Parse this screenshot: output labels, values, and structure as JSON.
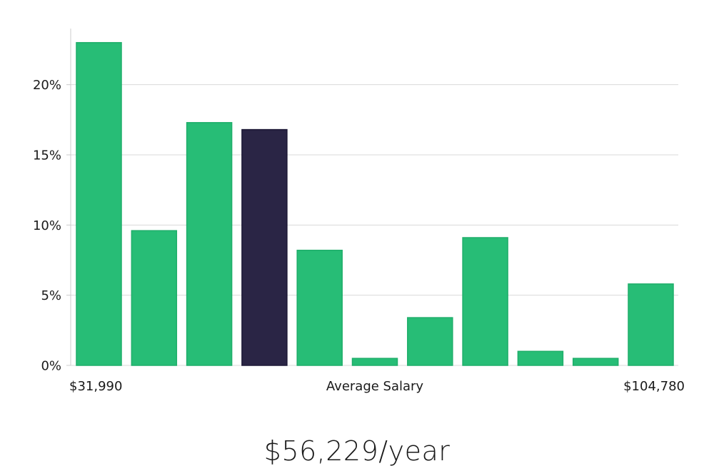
{
  "chart_data": {
    "type": "bar",
    "categories": [
      "1",
      "2",
      "3",
      "4",
      "5",
      "6",
      "7",
      "8",
      "9",
      "10",
      "11"
    ],
    "values": [
      23.0,
      9.6,
      17.3,
      16.8,
      8.2,
      0.5,
      3.4,
      9.1,
      1.0,
      0.5,
      5.8
    ],
    "highlight_index": 3,
    "ylim": [
      0,
      24
    ],
    "yticks": [
      0,
      5,
      10,
      15,
      20
    ],
    "ytick_labels": [
      "0%",
      "5%",
      "10%",
      "15%",
      "20%"
    ],
    "x_min_label": "$31,990",
    "xlabel": "Average Salary",
    "x_max_label": "$104,780",
    "grid": true,
    "colors": {
      "bar": "#27bd76",
      "bar_edge": "#1fae6a",
      "highlight": "#2a2545",
      "grid": "#d9d9d9",
      "axis": "#cccccc"
    }
  },
  "summary": {
    "salary_text": "$56,229/year"
  }
}
